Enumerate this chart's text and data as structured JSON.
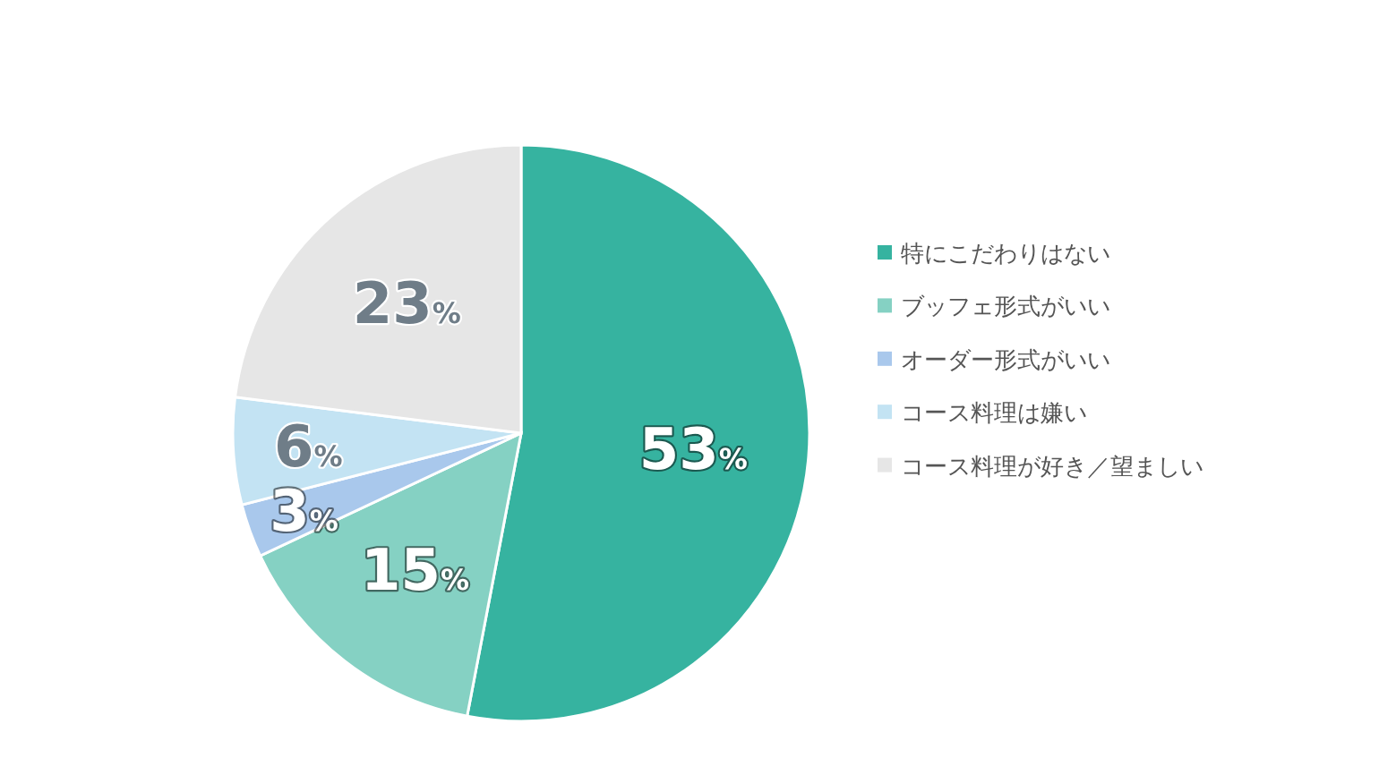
{
  "chart_data": {
    "type": "pie",
    "categories": [
      "特にこだわりはない",
      "ブッフェ形式がいい",
      "オーダー形式がいい",
      "コース料理は嫌い",
      "コース料理が好き／望ましい"
    ],
    "values": [
      53,
      15,
      3,
      6,
      23
    ],
    "colors": [
      "#36b3a0",
      "#85d1c3",
      "#a9c8ec",
      "#c3e3f3",
      "#e6e6e6"
    ],
    "value_labels": [
      "53%",
      "15%",
      "3%",
      "6%",
      "23%"
    ],
    "legend": "right"
  }
}
